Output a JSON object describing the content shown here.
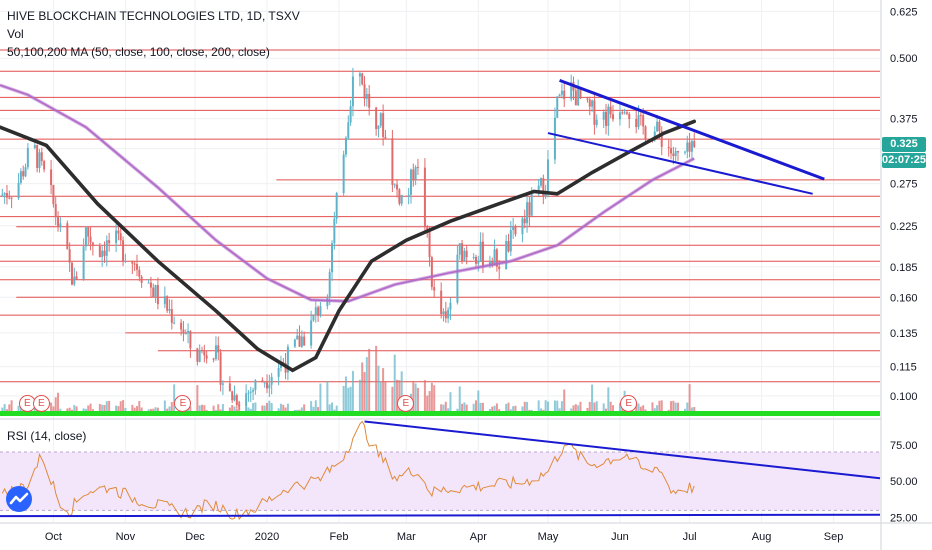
{
  "header": {
    "symbol": "HIVE BLOCKCHAIN TECHNOLOGIES LTD, 1D, TSXV",
    "volume_label": "Vol",
    "ma_label": "50,100,200 MA (50, close, 100, close, 200, close)",
    "rsi_label": "RSI (14, close)"
  },
  "price_tags": [
    {
      "name": "last-price",
      "text": "0.325",
      "color": "#26a69a"
    },
    {
      "name": "countdown",
      "text": "02:07:25",
      "color": "#26a69a"
    }
  ],
  "earnings_badges": [
    {
      "label": "E",
      "date": "2019-09-20"
    },
    {
      "label": "E",
      "date": "2019-09-26"
    },
    {
      "label": "E",
      "date": "2019-11-26"
    },
    {
      "label": "E",
      "date": "2020-03-01"
    },
    {
      "label": "E",
      "date": "2020-06-05"
    }
  ],
  "colors": {
    "grid": "#eef0f3",
    "up": "#5fb3c9",
    "down": "#e06b6b",
    "ma50": "#2d2d2d",
    "ma200": "#b06bc8",
    "trendline": "#1a1ad1",
    "level": "#e24e4e",
    "volume_baseline": "#22dd22",
    "rsi_line": "#e08a3a",
    "rsi_band": "#f3e6fb",
    "axis_text": "#131722"
  },
  "chart_data": [
    {
      "type": "candlestick",
      "title": "HIVE BLOCKCHAIN TECHNOLOGIES LTD, 1D, TSXV",
      "x_range": [
        "2019-09-08",
        "2020-09-21"
      ],
      "x_ticks": [
        {
          "label": "Oct",
          "date": "2019-10-01"
        },
        {
          "label": "Nov",
          "date": "2019-11-01"
        },
        {
          "label": "Dec",
          "date": "2019-12-01"
        },
        {
          "label": "2020",
          "date": "2020-01-01"
        },
        {
          "label": "Feb",
          "date": "2020-02-01"
        },
        {
          "label": "Mar",
          "date": "2020-03-01"
        },
        {
          "label": "Apr",
          "date": "2020-04-01"
        },
        {
          "label": "May",
          "date": "2020-05-01"
        },
        {
          "label": "Jun",
          "date": "2020-06-01"
        },
        {
          "label": "Jul",
          "date": "2020-07-01"
        },
        {
          "label": "Aug",
          "date": "2020-08-01"
        },
        {
          "label": "Sep",
          "date": "2020-09-01"
        }
      ],
      "y_scale": "log",
      "y_range": [
        0.09,
        0.66
      ],
      "y_ticks": [
        0.625,
        0.5,
        0.375,
        0.325,
        0.275,
        0.225,
        0.185,
        0.16,
        0.135,
        0.115,
        0.1
      ],
      "last_price": 0.325,
      "price_path": [
        [
          "2019-09-08",
          0.26
        ],
        [
          "2019-09-15",
          0.27
        ],
        [
          "2019-09-22",
          0.33
        ],
        [
          "2019-09-29",
          0.27
        ],
        [
          "2019-10-06",
          0.2
        ],
        [
          "2019-10-10",
          0.17
        ],
        [
          "2019-10-15",
          0.22
        ],
        [
          "2019-10-20",
          0.2
        ],
        [
          "2019-10-27",
          0.21
        ],
        [
          "2019-11-05",
          0.19
        ],
        [
          "2019-11-15",
          0.16
        ],
        [
          "2019-11-25",
          0.14
        ],
        [
          "2019-12-01",
          0.12
        ],
        [
          "2019-12-08",
          0.13
        ],
        [
          "2019-12-15",
          0.1
        ],
        [
          "2019-12-22",
          0.1
        ],
        [
          "2020-01-01",
          0.11
        ],
        [
          "2020-01-10",
          0.12
        ],
        [
          "2020-01-20",
          0.14
        ],
        [
          "2020-01-27",
          0.17
        ],
        [
          "2020-02-03",
          0.33
        ],
        [
          "2020-02-08",
          0.49
        ],
        [
          "2020-02-14",
          0.4
        ],
        [
          "2020-02-20",
          0.36
        ],
        [
          "2020-02-25",
          0.27
        ],
        [
          "2020-03-01",
          0.25
        ],
        [
          "2020-03-05",
          0.31
        ],
        [
          "2020-03-09",
          0.23
        ],
        [
          "2020-03-13",
          0.16
        ],
        [
          "2020-03-18",
          0.14
        ],
        [
          "2020-03-24",
          0.2
        ],
        [
          "2020-03-30",
          0.2
        ],
        [
          "2020-04-10",
          0.19
        ],
        [
          "2020-04-20",
          0.23
        ],
        [
          "2020-04-30",
          0.28
        ],
        [
          "2020-05-05",
          0.4
        ],
        [
          "2020-05-10",
          0.44
        ],
        [
          "2020-05-18",
          0.39
        ],
        [
          "2020-05-26",
          0.38
        ],
        [
          "2020-06-03",
          0.41
        ],
        [
          "2020-06-10",
          0.36
        ],
        [
          "2020-06-18",
          0.35
        ],
        [
          "2020-06-25",
          0.31
        ],
        [
          "2020-07-03",
          0.32
        ]
      ],
      "series": [
        {
          "name": "50",
          "values": [
            [
              "2019-09-08",
              0.36
            ],
            [
              "2019-09-28",
              0.33
            ],
            [
              "2019-10-20",
              0.25
            ],
            [
              "2019-11-15",
              0.19
            ],
            [
              "2019-12-10",
              0.15
            ],
            [
              "2019-12-28",
              0.125
            ],
            [
              "2020-01-12",
              0.113
            ],
            [
              "2020-01-22",
              0.12
            ],
            [
              "2020-02-01",
              0.15
            ],
            [
              "2020-02-15",
              0.19
            ],
            [
              "2020-03-01",
              0.21
            ],
            [
              "2020-03-20",
              0.23
            ],
            [
              "2020-04-10",
              0.25
            ],
            [
              "2020-04-25",
              0.265
            ],
            [
              "2020-05-05",
              0.262
            ],
            [
              "2020-05-20",
              0.29
            ],
            [
              "2020-06-05",
              0.32
            ],
            [
              "2020-06-20",
              0.35
            ],
            [
              "2020-07-03",
              0.37
            ]
          ]
        },
        {
          "name": "200",
          "values": [
            [
              "2019-09-08",
              0.44
            ],
            [
              "2019-09-20",
              0.42
            ],
            [
              "2019-10-15",
              0.36
            ],
            [
              "2019-11-15",
              0.27
            ],
            [
              "2019-12-10",
              0.21
            ],
            [
              "2020-01-01",
              0.175
            ],
            [
              "2020-01-20",
              0.158
            ],
            [
              "2020-02-05",
              0.157
            ],
            [
              "2020-02-25",
              0.17
            ],
            [
              "2020-03-20",
              0.18
            ],
            [
              "2020-04-15",
              0.19
            ],
            [
              "2020-05-05",
              0.205
            ],
            [
              "2020-05-25",
              0.24
            ],
            [
              "2020-06-15",
              0.28
            ],
            [
              "2020-07-03",
              0.31
            ]
          ]
        }
      ],
      "horizontal_levels": [
        {
          "value": 0.52,
          "from": "2019-09-08"
        },
        {
          "value": 0.47,
          "from": "2019-09-08"
        },
        {
          "value": 0.415,
          "from": "2019-09-08"
        },
        {
          "value": 0.39,
          "from": "2019-09-08"
        },
        {
          "value": 0.34,
          "from": "2019-09-08"
        },
        {
          "value": 0.28,
          "from": "2020-01-05"
        },
        {
          "value": 0.259,
          "from": "2019-09-08"
        },
        {
          "value": 0.235,
          "from": "2019-09-08"
        },
        {
          "value": 0.224,
          "from": "2019-09-15"
        },
        {
          "value": 0.205,
          "from": "2019-09-08"
        },
        {
          "value": 0.19,
          "from": "2019-09-08"
        },
        {
          "value": 0.174,
          "from": "2019-09-08"
        },
        {
          "value": 0.16,
          "from": "2019-09-15"
        },
        {
          "value": 0.147,
          "from": "2019-09-08"
        },
        {
          "value": 0.135,
          "from": "2019-11-01"
        },
        {
          "value": 0.124,
          "from": "2019-11-15"
        },
        {
          "value": 0.107,
          "from": "2019-09-08"
        }
      ],
      "trendlines": [
        {
          "from": [
            "2020-05-06",
            0.45
          ],
          "to": [
            "2020-08-28",
            0.281
          ]
        },
        {
          "from": [
            "2020-05-01",
            0.35
          ],
          "to": [
            "2020-08-23",
            0.262
          ]
        }
      ]
    },
    {
      "type": "bar",
      "title": "Vol",
      "note": "daily volume histogram, shorter bars are typical with spikes in early February"
    },
    {
      "type": "line",
      "title": "RSI (14, close)",
      "y_range": [
        22,
        92
      ],
      "y_ticks": [
        75.0,
        50.0,
        25.0
      ],
      "band": [
        30,
        70
      ],
      "series": [
        {
          "name": "RSI",
          "values": [
            [
              "2019-09-08",
              40
            ],
            [
              "2019-09-20",
              48
            ],
            [
              "2019-09-26",
              68
            ],
            [
              "2019-10-03",
              38
            ],
            [
              "2019-10-08",
              30
            ],
            [
              "2019-10-15",
              43
            ],
            [
              "2019-10-25",
              46
            ],
            [
              "2019-11-05",
              38
            ],
            [
              "2019-11-18",
              32
            ],
            [
              "2019-11-28",
              28
            ],
            [
              "2019-12-08",
              35
            ],
            [
              "2019-12-18",
              27
            ],
            [
              "2019-12-28",
              32
            ],
            [
              "2020-01-10",
              46
            ],
            [
              "2020-01-25",
              52
            ],
            [
              "2020-02-03",
              68
            ],
            [
              "2020-02-07",
              80
            ],
            [
              "2020-02-11",
              89
            ],
            [
              "2020-02-15",
              75
            ],
            [
              "2020-02-20",
              64
            ],
            [
              "2020-02-26",
              52
            ],
            [
              "2020-03-05",
              58
            ],
            [
              "2020-03-12",
              42
            ],
            [
              "2020-03-20",
              45
            ],
            [
              "2020-04-05",
              47
            ],
            [
              "2020-04-20",
              49
            ],
            [
              "2020-05-01",
              56
            ],
            [
              "2020-05-08",
              75
            ],
            [
              "2020-05-12",
              71
            ],
            [
              "2020-05-18",
              61
            ],
            [
              "2020-05-25",
              64
            ],
            [
              "2020-06-04",
              68
            ],
            [
              "2020-06-12",
              56
            ],
            [
              "2020-06-18",
              60
            ],
            [
              "2020-06-23",
              43
            ],
            [
              "2020-06-29",
              45
            ],
            [
              "2020-07-03",
              46
            ]
          ]
        }
      ],
      "trendlines": [
        {
          "from": [
            "2020-02-12",
            91
          ],
          "to": [
            "2020-09-21",
            52
          ]
        },
        {
          "from": [
            "2019-09-08",
            26
          ],
          "to": [
            "2020-09-21",
            27
          ]
        }
      ]
    }
  ]
}
